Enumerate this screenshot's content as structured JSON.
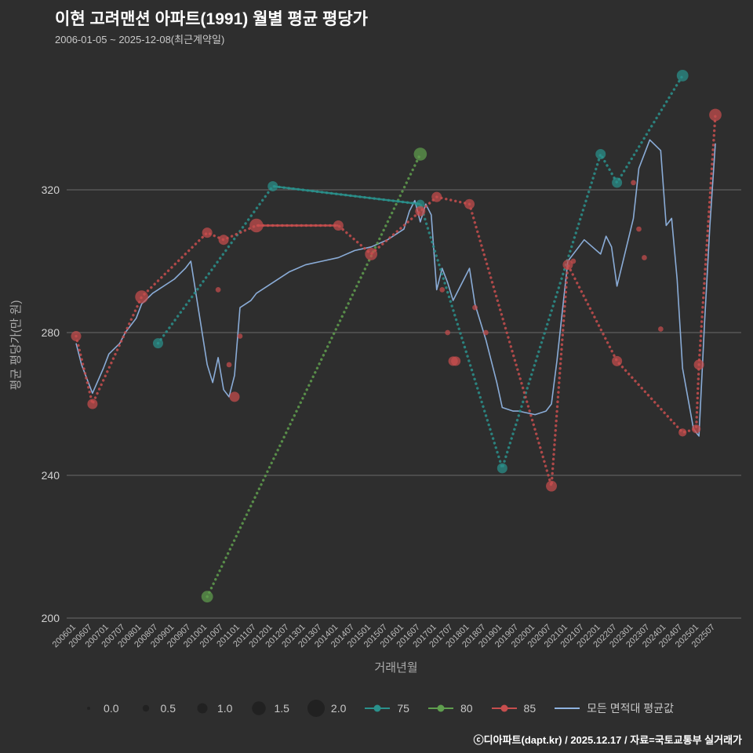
{
  "header": {
    "title": "이현 고려맨션 아파트(1991) 월별 평균 평당가",
    "subtitle": "2006-01-05 ~ 2025-12-08(최근계약일)"
  },
  "footer": {
    "text": "ⓒ디아파트(dapt.kr) / 2025.12.17 / 자료=국토교통부 실거래가"
  },
  "legend": {
    "sizes": [
      {
        "label": "0.0",
        "size": 0.0
      },
      {
        "label": "0.5",
        "size": 0.5
      },
      {
        "label": "1.0",
        "size": 1.0
      },
      {
        "label": "1.5",
        "size": 1.5
      },
      {
        "label": "2.0",
        "size": 2.0
      }
    ],
    "bubble_color": "#212121"
  },
  "chart_data": {
    "type": "scatter",
    "title": "이현 고려맨션 아파트(1991) 월별 평균 평당가",
    "subtitle": "2006-01-05 ~ 2025-12-08(최근계약일)",
    "xlabel": "거래년월",
    "ylabel": "평균 평당가(만 원)",
    "ylim": [
      200,
      358
    ],
    "yticks": [
      200,
      240,
      280,
      320
    ],
    "grid": true,
    "legend_position": "bottom",
    "background": "#2e2e2e",
    "xticks": [
      "200601",
      "200607",
      "200701",
      "200707",
      "200801",
      "200807",
      "200901",
      "200907",
      "201001",
      "201007",
      "201101",
      "201107",
      "201201",
      "201207",
      "201301",
      "201307",
      "201401",
      "201407",
      "201501",
      "201507",
      "201601",
      "201607",
      "201701",
      "201707",
      "201801",
      "201807",
      "201901",
      "201907",
      "202001",
      "202007",
      "202101",
      "202107",
      "202201",
      "202207",
      "202301",
      "202307",
      "202401",
      "202407",
      "202501",
      "202507"
    ],
    "series": [
      {
        "name": "모든 면적대 평균값",
        "color": "#8fb3e0",
        "style": "line",
        "line": [
          [
            "200601",
            277
          ],
          [
            "200603",
            271
          ],
          [
            "200607",
            263
          ],
          [
            "200611",
            270
          ],
          [
            "200701",
            274
          ],
          [
            "200705",
            277
          ],
          [
            "200707",
            280
          ],
          [
            "200711",
            284
          ],
          [
            "200801",
            288
          ],
          [
            "200805",
            291
          ],
          [
            "200807",
            292
          ],
          [
            "200901",
            295
          ],
          [
            "200905",
            298
          ],
          [
            "200907",
            300
          ],
          [
            "201001",
            271
          ],
          [
            "201003",
            266
          ],
          [
            "201005",
            273
          ],
          [
            "201007",
            264
          ],
          [
            "201009",
            262
          ],
          [
            "201011",
            268
          ],
          [
            "201101",
            287
          ],
          [
            "201105",
            289
          ],
          [
            "201107",
            291
          ],
          [
            "201201",
            294
          ],
          [
            "201207",
            297
          ],
          [
            "201301",
            299
          ],
          [
            "201307",
            300
          ],
          [
            "201401",
            301
          ],
          [
            "201407",
            303
          ],
          [
            "201501",
            304
          ],
          [
            "201507",
            306
          ],
          [
            "201601",
            309
          ],
          [
            "201603",
            314
          ],
          [
            "201605",
            317
          ],
          [
            "201607",
            311
          ],
          [
            "201609",
            316
          ],
          [
            "201611",
            313
          ],
          [
            "201701",
            292
          ],
          [
            "201703",
            298
          ],
          [
            "201705",
            294
          ],
          [
            "201707",
            289
          ],
          [
            "201711",
            295
          ],
          [
            "201801",
            298
          ],
          [
            "201803",
            288
          ],
          [
            "201807",
            278
          ],
          [
            "201811",
            266
          ],
          [
            "201901",
            259
          ],
          [
            "201905",
            258
          ],
          [
            "201907",
            258
          ],
          [
            "202001",
            257
          ],
          [
            "202005",
            258
          ],
          [
            "202007",
            260
          ],
          [
            "202009",
            272
          ],
          [
            "202101",
            300
          ],
          [
            "202105",
            304
          ],
          [
            "202107",
            306
          ],
          [
            "202201",
            302
          ],
          [
            "202203",
            307
          ],
          [
            "202205",
            304
          ],
          [
            "202207",
            293
          ],
          [
            "202301",
            312
          ],
          [
            "202303",
            326
          ],
          [
            "202307",
            334
          ],
          [
            "202311",
            331
          ],
          [
            "202401",
            310
          ],
          [
            "202403",
            312
          ],
          [
            "202405",
            295
          ],
          [
            "202407",
            270
          ],
          [
            "202411",
            253
          ],
          [
            "202501",
            251
          ],
          [
            "202503",
            282
          ],
          [
            "202505",
            310
          ],
          [
            "202507",
            333
          ]
        ],
        "points": []
      },
      {
        "name": "80",
        "color": "#5f9e4e",
        "style": "dotted",
        "line": [
          [
            "201001",
            206
          ],
          [
            "201607",
            330
          ]
        ],
        "points": [
          [
            "201001",
            206,
            1.2
          ],
          [
            "201607",
            330,
            1.4
          ]
        ]
      },
      {
        "name": "75",
        "color": "#2a918c",
        "style": "dotted",
        "solid_segments": [
          [
            "201201",
            "201607"
          ]
        ],
        "line": [
          [
            "200807",
            277
          ],
          [
            "201201",
            321
          ],
          [
            "201607",
            316
          ],
          [
            "201901",
            242
          ],
          [
            "202201",
            330
          ],
          [
            "202207",
            322
          ],
          [
            "202407",
            352
          ]
        ],
        "points": [
          [
            "200807",
            277,
            1.0
          ],
          [
            "201201",
            321,
            1.0
          ],
          [
            "201607",
            316,
            0.8
          ],
          [
            "201901",
            242,
            1.0
          ],
          [
            "202201",
            330,
            1.0
          ],
          [
            "202207",
            322,
            1.0
          ],
          [
            "202407",
            352,
            1.2
          ]
        ]
      },
      {
        "name": "85",
        "color": "#c74e4e",
        "style": "dotted",
        "solid_segments": [
          [
            "201107",
            "201401"
          ]
        ],
        "line": [
          [
            "200601",
            279
          ],
          [
            "200607",
            260
          ],
          [
            "200801",
            290
          ],
          [
            "201001",
            308
          ],
          [
            "201007",
            306
          ],
          [
            "201107",
            310
          ],
          [
            "201401",
            310
          ],
          [
            "201501",
            302
          ],
          [
            "201607",
            314
          ],
          [
            "201701",
            318
          ],
          [
            "201801",
            316
          ],
          [
            "202007",
            237
          ],
          [
            "202101",
            299
          ],
          [
            "202207",
            272
          ],
          [
            "202407",
            252
          ],
          [
            "202412",
            253
          ],
          [
            "202501",
            271
          ],
          [
            "202507",
            341
          ]
        ],
        "points": [
          [
            "200601",
            279,
            1.0
          ],
          [
            "200607",
            260,
            1.0
          ],
          [
            "200801",
            290,
            1.4
          ],
          [
            "201001",
            308,
            1.0
          ],
          [
            "201007",
            306,
            1.0
          ],
          [
            "201011",
            262,
            1.0
          ],
          [
            "201107",
            310,
            1.5
          ],
          [
            "201401",
            310,
            1.0
          ],
          [
            "201501",
            302,
            1.3
          ],
          [
            "201607",
            314,
            1.0
          ],
          [
            "201701",
            318,
            1.0
          ],
          [
            "201707",
            272,
            0.9
          ],
          [
            "201708",
            272,
            0.9
          ],
          [
            "201801",
            316,
            1.0
          ],
          [
            "202007",
            237,
            1.1
          ],
          [
            "202101",
            299,
            1.0
          ],
          [
            "202207",
            272,
            1.0
          ],
          [
            "202407",
            252,
            0.7
          ],
          [
            "202412",
            253,
            0.8
          ],
          [
            "202501",
            271,
            1.0
          ],
          [
            "202507",
            341,
            1.3
          ],
          [
            "201005",
            292,
            0.3
          ],
          [
            "201009",
            271,
            0.3
          ],
          [
            "201101",
            279,
            0.3
          ],
          [
            "201703",
            292,
            0.3
          ],
          [
            "201705",
            280,
            0.3
          ],
          [
            "201803",
            287,
            0.3
          ],
          [
            "201807",
            280,
            0.3
          ],
          [
            "202103",
            300,
            0.3
          ],
          [
            "202301",
            322,
            0.3
          ],
          [
            "202303",
            309,
            0.3
          ],
          [
            "202305",
            301,
            0.3
          ],
          [
            "202311",
            281,
            0.3
          ]
        ]
      }
    ]
  }
}
